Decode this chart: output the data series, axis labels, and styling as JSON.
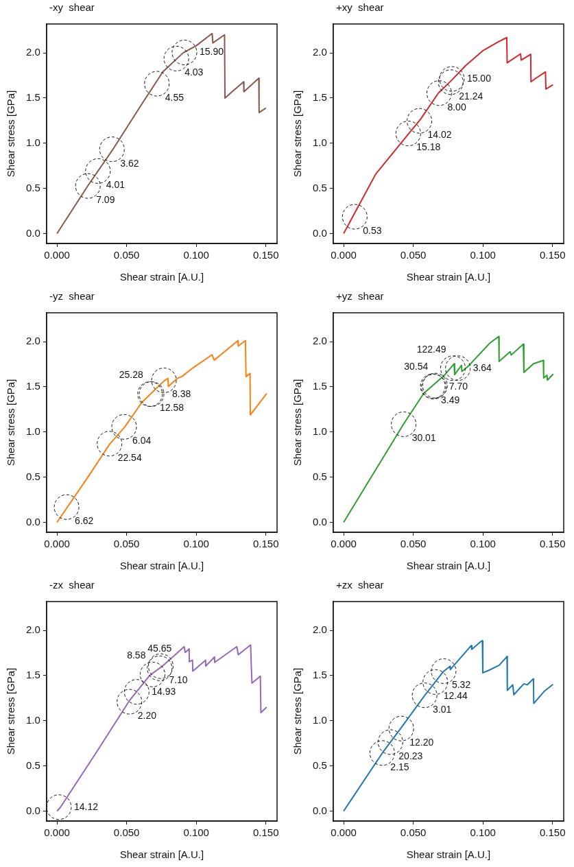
{
  "chart_data": [
    {
      "type": "line",
      "title": "-xy  shear",
      "xlabel": "Shear strain [A.U.]",
      "ylabel": "Shear stress [GPa]",
      "legend": false,
      "grid": false,
      "xlim": [
        -0.0075,
        0.158
      ],
      "ylim": [
        -0.11,
        2.32
      ],
      "xticks": [
        {
          "value": 0,
          "label": "0.000"
        },
        {
          "value": 0.05,
          "label": "0.050"
        },
        {
          "value": 0.1,
          "label": "0.100"
        },
        {
          "value": 0.15,
          "label": "0.150"
        }
      ],
      "yticks": [
        {
          "value": 0,
          "label": "0.0"
        },
        {
          "value": 0.5,
          "label": "0.5"
        },
        {
          "value": 1,
          "label": "1.0"
        },
        {
          "value": 1.5,
          "label": "1.5"
        },
        {
          "value": 2,
          "label": "2.0"
        }
      ],
      "x": [
        0,
        0.0222,
        0.0407,
        0.0616,
        0.076,
        0.0905,
        0.1,
        0.1114,
        0.1119,
        0.1203,
        0.1206,
        0.125,
        0.134,
        0.1342,
        0.1449,
        0.1451,
        0.15
      ],
      "series": [
        {
          "color": "#8c564b",
          "values": [
            0,
            0.53,
            0.945,
            1.45,
            1.79,
            2.0,
            2.08,
            2.215,
            2.11,
            2.2,
            1.5,
            1.56,
            1.68,
            1.57,
            1.72,
            1.34,
            1.39
          ]
        }
      ],
      "annotations": [
        {
          "text": "7.09",
          "x": 0.0222,
          "y": 0.527
        },
        {
          "text": "4.01",
          "x": 0.0294,
          "y": 0.692
        },
        {
          "text": "3.62",
          "x": 0.0395,
          "y": 0.933
        },
        {
          "text": "4.55",
          "x": 0.0717,
          "y": 1.659
        },
        {
          "text": "4.03",
          "x": 0.0857,
          "y": 1.937
        },
        {
          "text": "15.90",
          "x": 0.0915,
          "y": 2.005
        }
      ]
    },
    {
      "type": "line",
      "title": "+xy  shear",
      "xlabel": "Shear strain [A.U.]",
      "ylabel": "Shear stress [GPa]",
      "legend": false,
      "grid": false,
      "xlim": [
        -0.0075,
        0.158
      ],
      "ylim": [
        -0.11,
        2.32
      ],
      "xticks": [
        {
          "value": 0,
          "label": "0.000"
        },
        {
          "value": 0.05,
          "label": "0.050"
        },
        {
          "value": 0.1,
          "label": "0.100"
        },
        {
          "value": 0.15,
          "label": "0.150"
        }
      ],
      "yticks": [
        {
          "value": 0,
          "label": "0.0"
        },
        {
          "value": 0.5,
          "label": "0.5"
        },
        {
          "value": 1,
          "label": "1.0"
        },
        {
          "value": 1.5,
          "label": "1.5"
        },
        {
          "value": 2,
          "label": "2.0"
        }
      ],
      "x": [
        0,
        0.0231,
        0.0464,
        0.0552,
        0.068,
        0.0777,
        0.0874,
        0.1002,
        0.1107,
        0.1171,
        0.1174,
        0.127,
        0.1275,
        0.1343,
        0.1345,
        0.138,
        0.1449,
        0.1452,
        0.1503
      ],
      "series": [
        {
          "color": "#d62728",
          "values": [
            0,
            0.66,
            1.1,
            1.265,
            1.555,
            1.7,
            1.857,
            2.027,
            2.12,
            2.17,
            1.89,
            1.99,
            1.92,
            1.985,
            1.68,
            1.72,
            1.79,
            1.6,
            1.647
          ]
        }
      ],
      "annotations": [
        {
          "text": "0.53",
          "x": 0.008,
          "y": 0.186
        },
        {
          "text": "15.18",
          "x": 0.0464,
          "y": 1.108
        },
        {
          "text": "14.02",
          "x": 0.0544,
          "y": 1.248
        },
        {
          "text": "8.00",
          "x": 0.0686,
          "y": 1.555
        },
        {
          "text": "21.24",
          "x": 0.0769,
          "y": 1.676
        },
        {
          "text": "15.00",
          "x": 0.0777,
          "y": 1.712
        }
      ]
    },
    {
      "type": "line",
      "title": "-yz  shear",
      "xlabel": "Shear strain [A.U.]",
      "ylabel": "Shear stress [GPa]",
      "legend": false,
      "grid": false,
      "xlim": [
        -0.0075,
        0.158
      ],
      "ylim": [
        -0.11,
        2.32
      ],
      "xticks": [
        {
          "value": 0,
          "label": "0.000"
        },
        {
          "value": 0.05,
          "label": "0.050"
        },
        {
          "value": 0.1,
          "label": "0.100"
        },
        {
          "value": 0.15,
          "label": "0.150"
        }
      ],
      "yticks": [
        {
          "value": 0,
          "label": "0.0"
        },
        {
          "value": 0.5,
          "label": "0.5"
        },
        {
          "value": 1,
          "label": "1.0"
        },
        {
          "value": 1.5,
          "label": "1.5"
        },
        {
          "value": 2,
          "label": "2.0"
        }
      ],
      "x": [
        0,
        0.0222,
        0.0377,
        0.0487,
        0.0607,
        0.0671,
        0.0768,
        0.0797,
        0.08,
        0.0864,
        0.0896,
        0.0976,
        0.1113,
        0.1129,
        0.1185,
        0.13,
        0.1301,
        0.1353,
        0.1357,
        0.1386,
        0.1388,
        0.1506
      ],
      "series": [
        {
          "color": "#ff7f0e",
          "values": [
            0,
            0.5,
            0.863,
            1.057,
            1.323,
            1.42,
            1.565,
            1.594,
            1.504,
            1.594,
            1.613,
            1.71,
            1.855,
            1.795,
            1.867,
            2.012,
            1.952,
            2.012,
            1.613,
            1.649,
            1.19,
            1.427
          ]
        }
      ],
      "annotations": [
        {
          "text": "6.62",
          "x": 0.0069,
          "y": 0.169
        },
        {
          "text": "22.54",
          "x": 0.0377,
          "y": 0.871
        },
        {
          "text": "6.04",
          "x": 0.0482,
          "y": 1.057
        },
        {
          "text": "12.58",
          "x": 0.0679,
          "y": 1.42
        },
        {
          "text": "25.28",
          "x": 0.0668,
          "y": 1.42
        },
        {
          "text": "8.38",
          "x": 0.0768,
          "y": 1.572
        }
      ]
    },
    {
      "type": "line",
      "title": "+yz  shear",
      "xlabel": "Shear strain [A.U.]",
      "ylabel": "Shear stress [GPa]",
      "legend": false,
      "grid": false,
      "xlim": [
        -0.0075,
        0.158
      ],
      "ylim": [
        -0.11,
        2.32
      ],
      "xticks": [
        {
          "value": 0,
          "label": "0.000"
        },
        {
          "value": 0.05,
          "label": "0.050"
        },
        {
          "value": 0.1,
          "label": "0.100"
        },
        {
          "value": 0.15,
          "label": "0.150"
        }
      ],
      "yticks": [
        {
          "value": 0,
          "label": "0.0"
        },
        {
          "value": 0.5,
          "label": "0.5"
        },
        {
          "value": 1,
          "label": "1.0"
        },
        {
          "value": 1.5,
          "label": "1.5"
        },
        {
          "value": 2,
          "label": "2.0"
        }
      ],
      "x": [
        0,
        0.0431,
        0.0576,
        0.0648,
        0.072,
        0.0793,
        0.0797,
        0.0846,
        0.0849,
        0.0897,
        0.105,
        0.1114,
        0.1116,
        0.1195,
        0.1203,
        0.129,
        0.1294,
        0.1363,
        0.1434,
        0.1436,
        0.146,
        0.1463,
        0.1505
      ],
      "series": [
        {
          "color": "#2ca02c",
          "values": [
            0,
            1.09,
            1.43,
            1.526,
            1.623,
            1.756,
            1.635,
            1.739,
            1.671,
            1.732,
            1.985,
            2.058,
            1.78,
            1.889,
            1.852,
            1.973,
            1.659,
            1.756,
            1.792,
            1.599,
            1.628,
            1.574,
            1.642
          ]
        }
      ],
      "annotations": [
        {
          "text": "30.01",
          "x": 0.0431,
          "y": 1.086
        },
        {
          "text": "3.49",
          "x": 0.064,
          "y": 1.507
        },
        {
          "text": "7.70",
          "x": 0.0648,
          "y": 1.502
        },
        {
          "text": "30.54",
          "x": 0.0656,
          "y": 1.514
        },
        {
          "text": "122.49",
          "x": 0.0785,
          "y": 1.707
        },
        {
          "text": "3.64",
          "x": 0.082,
          "y": 1.707
        }
      ]
    },
    {
      "type": "line",
      "title": "-zx  shear",
      "xlabel": "Shear strain [A.U.]",
      "ylabel": "Shear stress [GPa]",
      "legend": false,
      "grid": false,
      "xlim": [
        -0.0075,
        0.158
      ],
      "ylim": [
        -0.11,
        2.32
      ],
      "xticks": [
        {
          "value": 0,
          "label": "0.000"
        },
        {
          "value": 0.05,
          "label": "0.050"
        },
        {
          "value": 0.1,
          "label": "0.100"
        },
        {
          "value": 0.15,
          "label": "0.150"
        }
      ],
      "yticks": [
        {
          "value": 0,
          "label": "0.0"
        },
        {
          "value": 0.5,
          "label": "0.5"
        },
        {
          "value": 1,
          "label": "1.0"
        },
        {
          "value": 1.5,
          "label": "1.5"
        },
        {
          "value": 2,
          "label": "2.0"
        }
      ],
      "x": [
        0,
        0.0022,
        0.0279,
        0.052,
        0.0665,
        0.0761,
        0.0913,
        0.0921,
        0.0949,
        0.095,
        0.0973,
        0.0975,
        0.1067,
        0.1068,
        0.1131,
        0.1132,
        0.1291,
        0.1302,
        0.139,
        0.1395,
        0.14,
        0.146,
        0.1464,
        0.1505
      ],
      "series": [
        {
          "color": "#9467bd",
          "values": [
            0,
            0.036,
            0.642,
            1.223,
            1.501,
            1.61,
            1.821,
            1.756,
            1.797,
            1.654,
            1.671,
            1.55,
            1.671,
            1.605,
            1.707,
            1.646,
            1.821,
            1.731,
            1.84,
            1.61,
            1.416,
            1.494,
            1.09,
            1.15
          ]
        }
      ],
      "annotations": [
        {
          "text": "14.12",
          "x": 0.0014,
          "y": 0.044
        },
        {
          "text": "2.20",
          "x": 0.052,
          "y": 1.211
        },
        {
          "text": "14.93",
          "x": 0.0572,
          "y": 1.32
        },
        {
          "text": "8.58",
          "x": 0.0686,
          "y": 1.513
        },
        {
          "text": "45.65",
          "x": 0.0737,
          "y": 1.581
        },
        {
          "text": "7.10",
          "x": 0.0745,
          "y": 1.605
        }
      ]
    },
    {
      "type": "line",
      "title": "+zx  shear",
      "xlabel": "Shear strain [A.U.]",
      "ylabel": "Shear stress [GPa]",
      "legend": false,
      "grid": false,
      "xlim": [
        -0.0075,
        0.158
      ],
      "ylim": [
        -0.11,
        2.32
      ],
      "xticks": [
        {
          "value": 0,
          "label": "0.000"
        },
        {
          "value": 0.05,
          "label": "0.050"
        },
        {
          "value": 0.1,
          "label": "0.100"
        },
        {
          "value": 0.15,
          "label": "0.150"
        }
      ],
      "yticks": [
        {
          "value": 0,
          "label": "0.0"
        },
        {
          "value": 0.5,
          "label": "0.5"
        },
        {
          "value": 1,
          "label": "1.0"
        },
        {
          "value": 1.5,
          "label": "1.5"
        },
        {
          "value": 2,
          "label": "2.0"
        }
      ],
      "x": [
        0,
        0.028,
        0.0409,
        0.0586,
        0.0715,
        0.0763,
        0.0766,
        0.0916,
        0.092,
        0.0985,
        0.0996,
        0.0999,
        0.1037,
        0.1117,
        0.1173,
        0.1175,
        0.1214,
        0.1222,
        0.1294,
        0.1318,
        0.1363,
        0.1365,
        0.1439,
        0.1503
      ],
      "series": [
        {
          "color": "#1f77b4",
          "values": [
            0,
            0.648,
            0.914,
            1.289,
            1.543,
            1.603,
            1.567,
            1.833,
            1.79,
            1.877,
            1.886,
            1.531,
            1.555,
            1.615,
            1.712,
            1.337,
            1.398,
            1.289,
            1.41,
            1.398,
            1.466,
            1.192,
            1.325,
            1.403
          ]
        }
      ],
      "annotations": [
        {
          "text": "2.15",
          "x": 0.0277,
          "y": 0.643
        },
        {
          "text": "20.23",
          "x": 0.0336,
          "y": 0.764
        },
        {
          "text": "12.20",
          "x": 0.0414,
          "y": 0.914
        },
        {
          "text": "3.01",
          "x": 0.0581,
          "y": 1.282
        },
        {
          "text": "12.44",
          "x": 0.0658,
          "y": 1.429
        },
        {
          "text": "5.32",
          "x": 0.0718,
          "y": 1.55
        }
      ]
    }
  ]
}
